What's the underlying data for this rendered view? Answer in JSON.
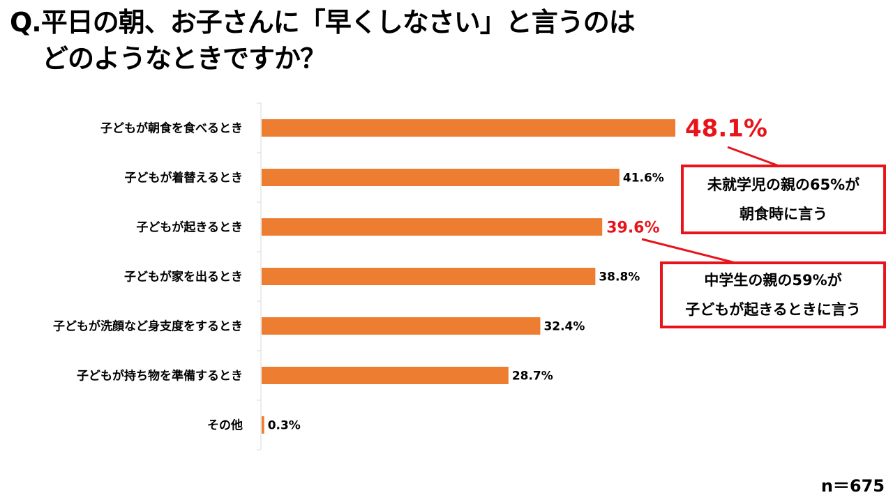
{
  "title": {
    "line1": "Q.平日の朝、お子さんに「早くしなさい」と言うのは",
    "line2": "どのようなときですか？"
  },
  "chart_data": {
    "type": "bar",
    "orientation": "horizontal",
    "categories": [
      "子どもが朝食を食べるとき",
      "子どもが着替えるとき",
      "子どもが起きるとき",
      "子どもが家を出るとき",
      "子どもが洗顔など身支度をするとき",
      "子どもが持ち物を準備するとき",
      "その他"
    ],
    "values": [
      48.1,
      41.6,
      39.6,
      38.8,
      32.4,
      28.7,
      0.3
    ],
    "value_labels": [
      "48.1%",
      "41.6%",
      "39.6%",
      "38.8%",
      "32.4%",
      "28.7%",
      "0.3%"
    ],
    "highlighted_labels": [
      0,
      2
    ],
    "xlim": [
      0,
      48.1
    ],
    "bar_color": "#ed7d31",
    "highlight_color": "#e8141b",
    "grid": false
  },
  "callouts": [
    {
      "line1": "未就学児の親の65%が",
      "line2": "朝食時に言う"
    },
    {
      "line1": "中学生の親の59%が",
      "line2": "子どもが起きるときに言う"
    }
  ],
  "sample_size": "n＝675"
}
